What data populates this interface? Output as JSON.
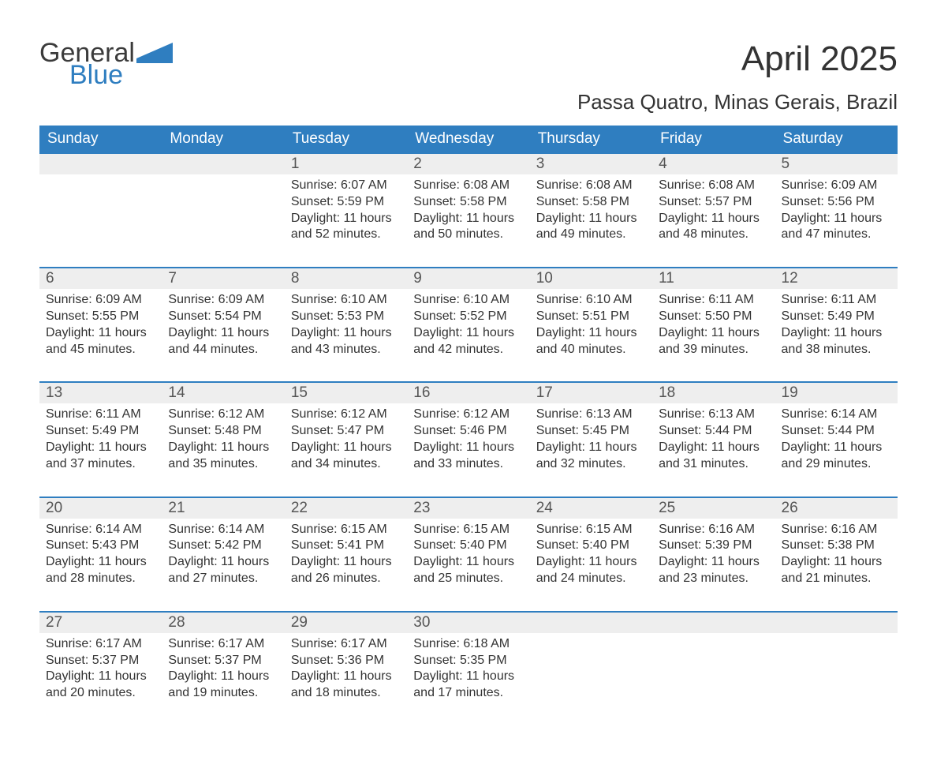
{
  "logo": {
    "word1": "General",
    "word2": "Blue"
  },
  "title": "April 2025",
  "location": "Passa Quatro, Minas Gerais, Brazil",
  "colors": {
    "header_bg": "#2f7ec0",
    "header_text": "#ffffff",
    "daynum_bg": "#eeeeee",
    "daynum_border": "#2f7ec0",
    "text": "#333333",
    "logo_blue": "#2f7ec0"
  },
  "day_headers": [
    "Sunday",
    "Monday",
    "Tuesday",
    "Wednesday",
    "Thursday",
    "Friday",
    "Saturday"
  ],
  "weeks": [
    [
      {
        "blank": true
      },
      {
        "blank": true
      },
      {
        "day": "1",
        "sunrise": "6:07 AM",
        "sunset": "5:59 PM",
        "daylight": "11 hours and 52 minutes."
      },
      {
        "day": "2",
        "sunrise": "6:08 AM",
        "sunset": "5:58 PM",
        "daylight": "11 hours and 50 minutes."
      },
      {
        "day": "3",
        "sunrise": "6:08 AM",
        "sunset": "5:58 PM",
        "daylight": "11 hours and 49 minutes."
      },
      {
        "day": "4",
        "sunrise": "6:08 AM",
        "sunset": "5:57 PM",
        "daylight": "11 hours and 48 minutes."
      },
      {
        "day": "5",
        "sunrise": "6:09 AM",
        "sunset": "5:56 PM",
        "daylight": "11 hours and 47 minutes."
      }
    ],
    [
      {
        "day": "6",
        "sunrise": "6:09 AM",
        "sunset": "5:55 PM",
        "daylight": "11 hours and 45 minutes."
      },
      {
        "day": "7",
        "sunrise": "6:09 AM",
        "sunset": "5:54 PM",
        "daylight": "11 hours and 44 minutes."
      },
      {
        "day": "8",
        "sunrise": "6:10 AM",
        "sunset": "5:53 PM",
        "daylight": "11 hours and 43 minutes."
      },
      {
        "day": "9",
        "sunrise": "6:10 AM",
        "sunset": "5:52 PM",
        "daylight": "11 hours and 42 minutes."
      },
      {
        "day": "10",
        "sunrise": "6:10 AM",
        "sunset": "5:51 PM",
        "daylight": "11 hours and 40 minutes."
      },
      {
        "day": "11",
        "sunrise": "6:11 AM",
        "sunset": "5:50 PM",
        "daylight": "11 hours and 39 minutes."
      },
      {
        "day": "12",
        "sunrise": "6:11 AM",
        "sunset": "5:49 PM",
        "daylight": "11 hours and 38 minutes."
      }
    ],
    [
      {
        "day": "13",
        "sunrise": "6:11 AM",
        "sunset": "5:49 PM",
        "daylight": "11 hours and 37 minutes."
      },
      {
        "day": "14",
        "sunrise": "6:12 AM",
        "sunset": "5:48 PM",
        "daylight": "11 hours and 35 minutes."
      },
      {
        "day": "15",
        "sunrise": "6:12 AM",
        "sunset": "5:47 PM",
        "daylight": "11 hours and 34 minutes."
      },
      {
        "day": "16",
        "sunrise": "6:12 AM",
        "sunset": "5:46 PM",
        "daylight": "11 hours and 33 minutes."
      },
      {
        "day": "17",
        "sunrise": "6:13 AM",
        "sunset": "5:45 PM",
        "daylight": "11 hours and 32 minutes."
      },
      {
        "day": "18",
        "sunrise": "6:13 AM",
        "sunset": "5:44 PM",
        "daylight": "11 hours and 31 minutes."
      },
      {
        "day": "19",
        "sunrise": "6:14 AM",
        "sunset": "5:44 PM",
        "daylight": "11 hours and 29 minutes."
      }
    ],
    [
      {
        "day": "20",
        "sunrise": "6:14 AM",
        "sunset": "5:43 PM",
        "daylight": "11 hours and 28 minutes."
      },
      {
        "day": "21",
        "sunrise": "6:14 AM",
        "sunset": "5:42 PM",
        "daylight": "11 hours and 27 minutes."
      },
      {
        "day": "22",
        "sunrise": "6:15 AM",
        "sunset": "5:41 PM",
        "daylight": "11 hours and 26 minutes."
      },
      {
        "day": "23",
        "sunrise": "6:15 AM",
        "sunset": "5:40 PM",
        "daylight": "11 hours and 25 minutes."
      },
      {
        "day": "24",
        "sunrise": "6:15 AM",
        "sunset": "5:40 PM",
        "daylight": "11 hours and 24 minutes."
      },
      {
        "day": "25",
        "sunrise": "6:16 AM",
        "sunset": "5:39 PM",
        "daylight": "11 hours and 23 minutes."
      },
      {
        "day": "26",
        "sunrise": "6:16 AM",
        "sunset": "5:38 PM",
        "daylight": "11 hours and 21 minutes."
      }
    ],
    [
      {
        "day": "27",
        "sunrise": "6:17 AM",
        "sunset": "5:37 PM",
        "daylight": "11 hours and 20 minutes."
      },
      {
        "day": "28",
        "sunrise": "6:17 AM",
        "sunset": "5:37 PM",
        "daylight": "11 hours and 19 minutes."
      },
      {
        "day": "29",
        "sunrise": "6:17 AM",
        "sunset": "5:36 PM",
        "daylight": "11 hours and 18 minutes."
      },
      {
        "day": "30",
        "sunrise": "6:18 AM",
        "sunset": "5:35 PM",
        "daylight": "11 hours and 17 minutes."
      },
      {
        "blank": true
      },
      {
        "blank": true
      },
      {
        "blank": true
      }
    ]
  ],
  "labels": {
    "sunrise_prefix": "Sunrise: ",
    "sunset_prefix": "Sunset: ",
    "daylight_prefix": "Daylight: "
  }
}
